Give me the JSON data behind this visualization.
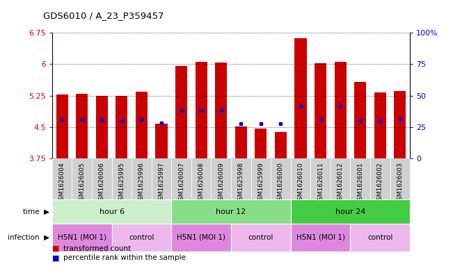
{
  "title": "GDS6010 / A_23_P359457",
  "samples": [
    "GSM1626004",
    "GSM1626005",
    "GSM1626006",
    "GSM1625995",
    "GSM1625996",
    "GSM1625997",
    "GSM1626007",
    "GSM1626008",
    "GSM1626009",
    "GSM1625998",
    "GSM1625999",
    "GSM1626000",
    "GSM1626010",
    "GSM1626011",
    "GSM1626012",
    "GSM1626001",
    "GSM1626002",
    "GSM1626003"
  ],
  "bar_tops": [
    5.28,
    5.3,
    5.25,
    5.24,
    5.35,
    4.58,
    5.96,
    6.05,
    6.04,
    4.52,
    4.47,
    4.38,
    6.62,
    6.03,
    6.06,
    5.58,
    5.32,
    5.36
  ],
  "bar_base": 3.75,
  "blue_dots": [
    4.67,
    4.68,
    4.67,
    4.65,
    4.68,
    4.6,
    4.9,
    4.9,
    4.9,
    4.58,
    4.58,
    4.58,
    5.0,
    4.7,
    5.0,
    4.65,
    4.65,
    4.7
  ],
  "ylim": [
    3.75,
    6.75
  ],
  "yticks": [
    3.75,
    4.5,
    5.25,
    6.0,
    6.75
  ],
  "ytick_labels": [
    "3.75",
    "4.5",
    "5.25",
    "6",
    "6.75"
  ],
  "right_yticks": [
    0,
    25,
    50,
    75,
    100
  ],
  "right_ytick_labels": [
    "0",
    "25",
    "50",
    "75",
    "100%"
  ],
  "bar_color": "#cc0000",
  "dot_color": "#0000cc",
  "bar_width": 0.6,
  "time_groups": [
    {
      "label": "hour 6",
      "start": 0,
      "end": 6,
      "color": "#ccf0cc"
    },
    {
      "label": "hour 12",
      "start": 6,
      "end": 12,
      "color": "#88dd88"
    },
    {
      "label": "hour 24",
      "start": 12,
      "end": 18,
      "color": "#44cc44"
    }
  ],
  "infection_groups": [
    {
      "label": "H5N1 (MOI 1)",
      "start": 0,
      "end": 3,
      "color": "#dd88dd"
    },
    {
      "label": "control",
      "start": 3,
      "end": 6,
      "color": "#eeb8ee"
    },
    {
      "label": "H5N1 (MOI 1)",
      "start": 6,
      "end": 9,
      "color": "#dd88dd"
    },
    {
      "label": "control",
      "start": 9,
      "end": 12,
      "color": "#eeb8ee"
    },
    {
      "label": "H5N1 (MOI 1)",
      "start": 12,
      "end": 15,
      "color": "#dd88dd"
    },
    {
      "label": "control",
      "start": 15,
      "end": 18,
      "color": "#eeb8ee"
    }
  ],
  "legend_items": [
    {
      "label": "transformed count",
      "color": "#cc0000"
    },
    {
      "label": "percentile rank within the sample",
      "color": "#0000cc"
    }
  ],
  "label_color_left": "#cc0000",
  "label_color_right": "#0000cc",
  "sample_box_color": "#d0d0d0"
}
